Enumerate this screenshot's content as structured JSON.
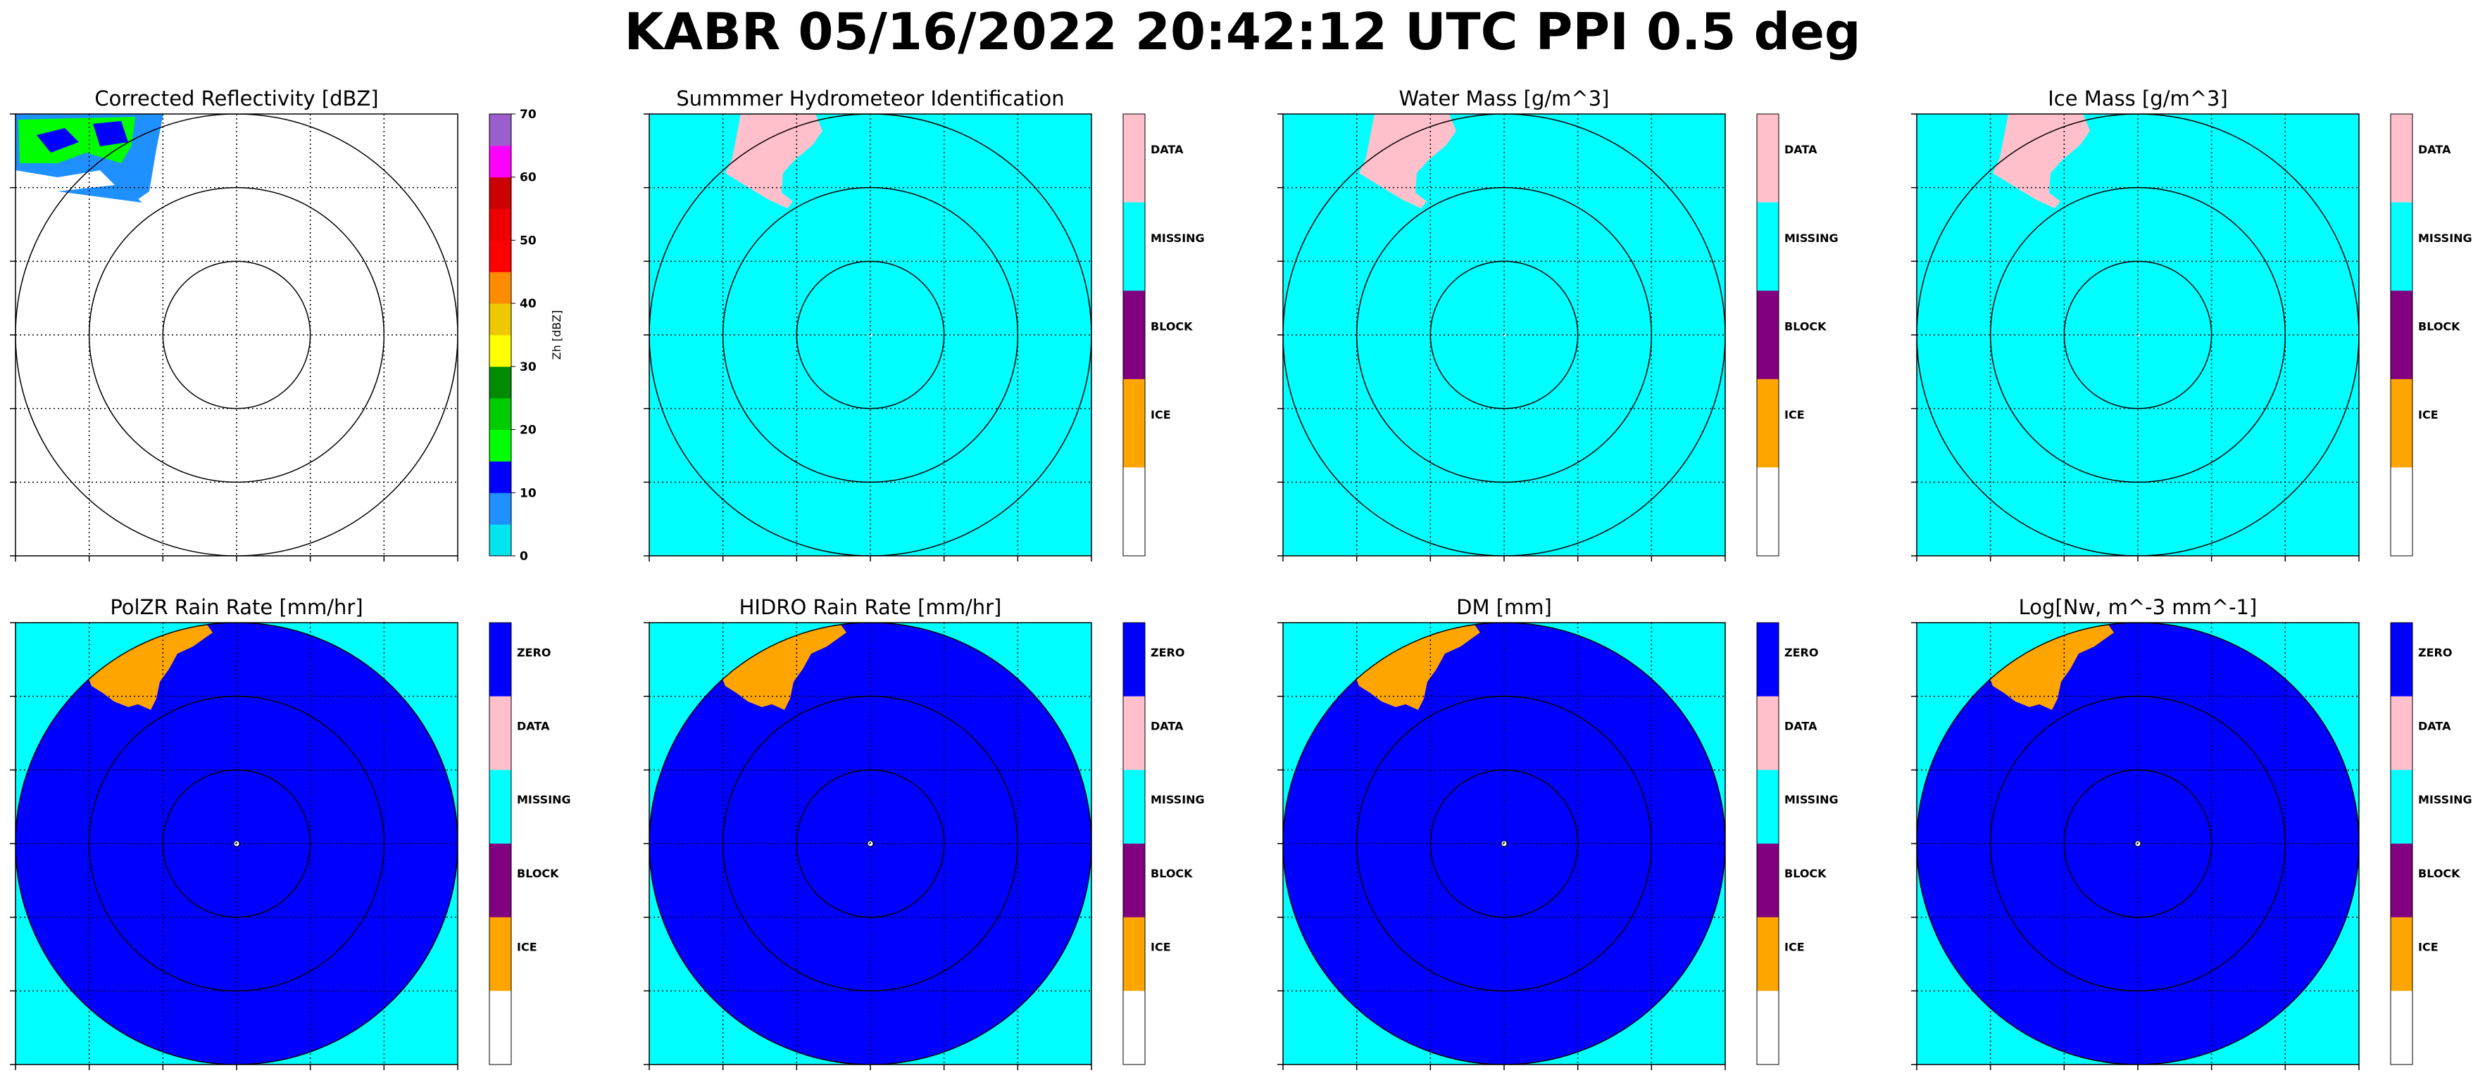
{
  "figure_title": "KABR 05/16/2022 20:42:12 UTC PPI 0.5 deg",
  "colors": {
    "background_cyan": "#00ffff",
    "zero_blue": "#0000ff",
    "data_pink": "#ffc0cb",
    "missing_cyan": "#00ffff",
    "block_purple": "#800080",
    "ice_orange": "#ffa500",
    "range_ring": "#000000",
    "grid": "#000000"
  },
  "chart_data": [
    {
      "type": "heatmap",
      "title": "Corrected Reflectivity [dBZ]",
      "projection": "polar PPI",
      "range_rings": 3,
      "grid": "dotted",
      "colorbar": {
        "kind": "continuous",
        "label": "Zh [dBZ]",
        "ticks": [
          "0",
          "10",
          "20",
          "30",
          "40",
          "50",
          "60",
          "70"
        ],
        "range": [
          0,
          70
        ],
        "colors": [
          "#00e5ee",
          "#1e90ff",
          "#0000ff",
          "#00ff00",
          "#00cd00",
          "#008b00",
          "#ffff00",
          "#eec900",
          "#ff8c00",
          "#ff0000",
          "#ee0000",
          "#cd0000",
          "#ff00ff",
          "#9a5fcd"
        ]
      },
      "echo": "green/blue reflectivity in top-left (northwest) corner"
    },
    {
      "type": "heatmap",
      "title": "Summmer Hydrometeor Identification",
      "projection": "polar PPI",
      "range_rings": 3,
      "grid": "dotted",
      "field": "all cyan with pink area in northwest",
      "colorbar": {
        "kind": "categorical",
        "labels": [
          "DATA",
          "MISSING",
          "BLOCK",
          "ICE",
          ""
        ],
        "colors": [
          "#ffc0cb",
          "#00ffff",
          "#800080",
          "#ffa500",
          "#ffffff"
        ]
      }
    },
    {
      "type": "heatmap",
      "title": "Water Mass [g/m^3]",
      "projection": "polar PPI",
      "range_rings": 3,
      "grid": "dotted",
      "field": "all cyan with pink area in northwest",
      "colorbar": {
        "kind": "categorical",
        "labels": [
          "DATA",
          "MISSING",
          "BLOCK",
          "ICE",
          ""
        ],
        "colors": [
          "#ffc0cb",
          "#00ffff",
          "#800080",
          "#ffa500",
          "#ffffff"
        ]
      }
    },
    {
      "type": "heatmap",
      "title": "Ice Mass [g/m^3]",
      "projection": "polar PPI",
      "range_rings": 3,
      "grid": "dotted",
      "field": "all cyan with pink area in northwest",
      "colorbar": {
        "kind": "categorical",
        "labels": [
          "DATA",
          "MISSING",
          "BLOCK",
          "ICE",
          ""
        ],
        "colors": [
          "#ffc0cb",
          "#00ffff",
          "#800080",
          "#ffa500",
          "#ffffff"
        ]
      }
    },
    {
      "type": "heatmap",
      "title": "PolZR Rain Rate [mm/hr]",
      "projection": "polar PPI",
      "range_rings": 3,
      "grid": "dotted",
      "field": "blue disk (ZERO) on cyan, orange (ICE) area in northwest",
      "colorbar": {
        "kind": "categorical",
        "labels": [
          "ZERO",
          "DATA",
          "MISSING",
          "BLOCK",
          "ICE",
          ""
        ],
        "colors": [
          "#0000ff",
          "#ffc0cb",
          "#00ffff",
          "#800080",
          "#ffa500",
          "#ffffff"
        ]
      }
    },
    {
      "type": "heatmap",
      "title": "HIDRO Rain Rate [mm/hr]",
      "projection": "polar PPI",
      "range_rings": 3,
      "grid": "dotted",
      "field": "blue disk (ZERO) on cyan, orange (ICE) area in northwest",
      "colorbar": {
        "kind": "categorical",
        "labels": [
          "ZERO",
          "DATA",
          "MISSING",
          "BLOCK",
          "ICE",
          ""
        ],
        "colors": [
          "#0000ff",
          "#ffc0cb",
          "#00ffff",
          "#800080",
          "#ffa500",
          "#ffffff"
        ]
      }
    },
    {
      "type": "heatmap",
      "title": "DM [mm]",
      "projection": "polar PPI",
      "range_rings": 3,
      "grid": "dotted",
      "field": "blue disk (ZERO) on cyan, orange (ICE) area in northwest",
      "colorbar": {
        "kind": "categorical",
        "labels": [
          "ZERO",
          "DATA",
          "MISSING",
          "BLOCK",
          "ICE",
          ""
        ],
        "colors": [
          "#0000ff",
          "#ffc0cb",
          "#00ffff",
          "#800080",
          "#ffa500",
          "#ffffff"
        ]
      }
    },
    {
      "type": "heatmap",
      "title": "Log[Nw, m^-3 mm^-1]",
      "projection": "polar PPI",
      "range_rings": 3,
      "grid": "dotted",
      "field": "blue disk (ZERO) on cyan, orange (ICE) area in northwest",
      "colorbar": {
        "kind": "categorical",
        "labels": [
          "ZERO",
          "DATA",
          "MISSING",
          "BLOCK",
          "ICE",
          ""
        ],
        "colors": [
          "#0000ff",
          "#ffc0cb",
          "#00ffff",
          "#800080",
          "#ffa500",
          "#ffffff"
        ]
      }
    }
  ]
}
